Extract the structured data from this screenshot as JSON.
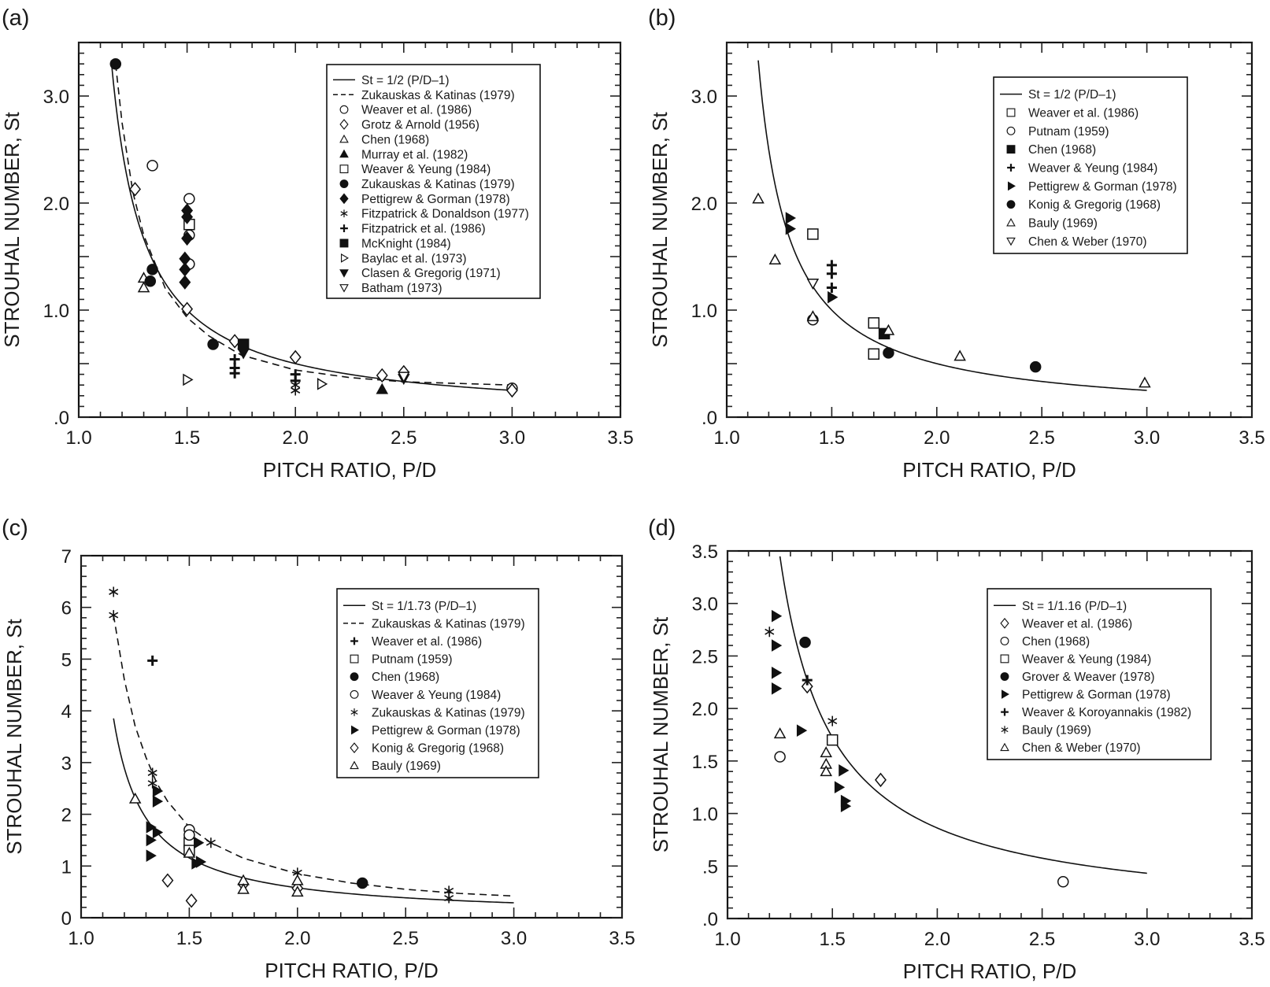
{
  "chart_data": [
    {
      "panel": "a",
      "panel_label": "(a)",
      "type": "scatter",
      "xlabel": "PITCH RATIO, P/D",
      "ylabel": "STROUHAL NUMBER, St",
      "xlim": [
        1.0,
        3.5
      ],
      "ylim": [
        0,
        3.5
      ],
      "xminor": 0.1,
      "xmajor": 0.5,
      "yminor": 0.1,
      "ymajor": 0.5,
      "xtick_values": [
        1.0,
        1.5,
        2.0,
        2.5,
        3.0,
        3.5
      ],
      "xtick_labels": [
        "1.0",
        "1.5",
        "2.0",
        "2.5",
        "3.0",
        "3.5"
      ],
      "ytick_values": [
        0,
        1,
        2,
        3
      ],
      "ytick_labels": [
        ".0",
        "1.0",
        "2.0",
        "3.0"
      ],
      "curves": [
        {
          "name": "St = 1/2 (P/D–1)",
          "style": "solid",
          "k": 2,
          "x_range": [
            1.15,
            3.0
          ]
        },
        {
          "name": "Zukauskas & Katinas (1979)",
          "style": "dashed",
          "points": [
            [
              1.17,
              3.3
            ],
            [
              1.2,
              2.75
            ],
            [
              1.25,
              2.1
            ],
            [
              1.3,
              1.7
            ],
            [
              1.4,
              1.2
            ],
            [
              1.5,
              0.93
            ],
            [
              1.6,
              0.76
            ],
            [
              1.75,
              0.58
            ],
            [
              2.0,
              0.44
            ],
            [
              2.25,
              0.37
            ],
            [
              2.5,
              0.33
            ],
            [
              3.0,
              0.3
            ]
          ]
        }
      ],
      "series": [
        {
          "name": "Weaver et al. (1986)",
          "marker": "circle-open",
          "points": [
            [
              1.34,
              2.35
            ],
            [
              1.51,
              2.04
            ],
            [
              1.51,
              1.7
            ],
            [
              1.51,
              1.43
            ],
            [
              3.0,
              0.27
            ]
          ]
        },
        {
          "name": "Grotz & Arnold (1956)",
          "marker": "diamond-open",
          "points": [
            [
              1.26,
              2.13
            ],
            [
              1.5,
              1.01
            ],
            [
              1.72,
              0.71
            ],
            [
              2.0,
              0.56
            ],
            [
              2.4,
              0.39
            ],
            [
              2.5,
              0.42
            ],
            [
              3.0,
              0.25
            ]
          ]
        },
        {
          "name": "Chen (1968)",
          "marker": "triangle-open",
          "points": [
            [
              1.3,
              1.3
            ],
            [
              1.3,
              1.21
            ]
          ]
        },
        {
          "name": "Murray et al. (1982)",
          "marker": "triangle-filled",
          "points": [
            [
              2.4,
              0.26
            ]
          ]
        },
        {
          "name": "Weaver & Yeung (1984)",
          "marker": "square-open",
          "points": [
            [
              1.51,
              1.8
            ]
          ]
        },
        {
          "name": "Zukauskas & Katinas (1979)",
          "marker": "circle-filled",
          "points": [
            [
              1.17,
              3.3
            ],
            [
              1.34,
              1.38
            ],
            [
              1.33,
              1.27
            ],
            [
              1.62,
              0.68
            ]
          ]
        },
        {
          "name": "Pettigrew & Gorman (1978)",
          "marker": "diamond-filled",
          "points": [
            [
              1.5,
              1.93
            ],
            [
              1.5,
              1.87
            ],
            [
              1.5,
              1.67
            ],
            [
              1.49,
              1.48
            ],
            [
              1.49,
              1.38
            ],
            [
              1.49,
              1.26
            ]
          ]
        },
        {
          "name": "Fitzpatrick & Donaldson (1977)",
          "marker": "asterisk",
          "points": [
            [
              2.0,
              0.3
            ],
            [
              2.0,
              0.25
            ]
          ]
        },
        {
          "name": "Fitzpatrick et al. (1986)",
          "marker": "plus",
          "points": [
            [
              1.72,
              0.54
            ],
            [
              1.72,
              0.46
            ],
            [
              1.72,
              0.41
            ],
            [
              2.0,
              0.4
            ],
            [
              2.0,
              0.34
            ]
          ]
        },
        {
          "name": "McKnight (1984)",
          "marker": "square-filled",
          "points": [
            [
              1.76,
              0.68
            ]
          ]
        },
        {
          "name": "Baylac et al. (1973)",
          "marker": "tri-right-open",
          "points": [
            [
              1.5,
              0.35
            ],
            [
              2.12,
              0.31
            ]
          ]
        },
        {
          "name": "Clasen & Gregorig (1971)",
          "marker": "tri-down-filled",
          "points": [
            [
              1.76,
              0.6
            ],
            [
              2.5,
              0.36
            ]
          ]
        },
        {
          "name": "Batham (1973)",
          "marker": "tri-down-open",
          "points": [
            [
              2.5,
              0.38
            ]
          ]
        }
      ]
    },
    {
      "panel": "b",
      "panel_label": "(b)",
      "type": "scatter",
      "xlabel": "PITCH RATIO, P/D",
      "ylabel": "STROUHAL NUMBER, St",
      "xlim": [
        1.0,
        3.5
      ],
      "ylim": [
        0,
        3.5
      ],
      "xminor": 0.1,
      "xmajor": 0.5,
      "yminor": 0.1,
      "ymajor": 0.5,
      "xtick_values": [
        1.0,
        1.5,
        2.0,
        2.5,
        3.0,
        3.5
      ],
      "xtick_labels": [
        "1.0",
        "1.5",
        "2.0",
        "2.5",
        "3.0",
        "3.5"
      ],
      "ytick_values": [
        0,
        1,
        2,
        3
      ],
      "ytick_labels": [
        ".0",
        "1.0",
        "2.0",
        "3.0"
      ],
      "curves": [
        {
          "name": "St = 1/2 (P/D–1)",
          "style": "solid",
          "k": 2,
          "x_range": [
            1.15,
            3.0
          ]
        }
      ],
      "series": [
        {
          "name": "Weaver et al. (1986)",
          "marker": "square-open",
          "points": [
            [
              1.41,
              1.71
            ],
            [
              1.7,
              0.88
            ],
            [
              1.7,
              0.59
            ]
          ]
        },
        {
          "name": "Putnam (1959)",
          "marker": "circle-open",
          "points": [
            [
              1.41,
              0.91
            ]
          ]
        },
        {
          "name": "Chen (1968)",
          "marker": "square-filled",
          "points": [
            [
              1.75,
              0.78
            ]
          ]
        },
        {
          "name": "Weaver & Yeung (1984)",
          "marker": "plus",
          "points": [
            [
              1.5,
              1.42
            ],
            [
              1.5,
              1.34
            ],
            [
              1.5,
              1.21
            ]
          ]
        },
        {
          "name": "Pettigrew & Gorman (1978)",
          "marker": "tri-right-filled",
          "points": [
            [
              1.3,
              1.86
            ],
            [
              1.3,
              1.76
            ],
            [
              1.5,
              1.12
            ]
          ]
        },
        {
          "name": "Konig & Gregorig (1968)",
          "marker": "circle-filled",
          "points": [
            [
              1.77,
              0.6
            ],
            [
              2.47,
              0.47
            ]
          ]
        },
        {
          "name": "Bauly (1969)",
          "marker": "triangle-open",
          "points": [
            [
              1.15,
              2.04
            ],
            [
              1.23,
              1.47
            ],
            [
              1.41,
              0.94
            ],
            [
              1.77,
              0.81
            ],
            [
              2.11,
              0.57
            ],
            [
              2.99,
              0.32
            ]
          ]
        },
        {
          "name": "Chen & Weber (1970)",
          "marker": "tri-down-open",
          "points": [
            [
              1.41,
              1.25
            ]
          ]
        }
      ]
    },
    {
      "panel": "c",
      "panel_label": "(c)",
      "type": "scatter",
      "xlabel": "PITCH RATIO, P/D",
      "ylabel": "STROUHAL NUMBER, St",
      "xlim": [
        1.0,
        3.5
      ],
      "ylim": [
        0,
        7
      ],
      "xminor": 0.1,
      "xmajor": 0.5,
      "yminor": 0.2,
      "ymajor": 1,
      "xtick_values": [
        1.0,
        1.5,
        2.0,
        2.5,
        3.0,
        3.5
      ],
      "xtick_labels": [
        "1.0",
        "1.5",
        "2.0",
        "2.5",
        "3.0",
        "3.5"
      ],
      "ytick_values": [
        0,
        1,
        2,
        3,
        4,
        5,
        6,
        7
      ],
      "ytick_labels": [
        "0",
        "1",
        "2",
        "3",
        "4",
        "5",
        "6",
        "7"
      ],
      "curves": [
        {
          "name": "St = 1/1.73 (P/D–1)",
          "style": "solid",
          "k": 1.73,
          "x_range": [
            1.15,
            3.0
          ]
        },
        {
          "name": "Zukauskas & Katinas (1979)",
          "style": "dashed",
          "points": [
            [
              1.15,
              5.85
            ],
            [
              1.2,
              4.6
            ],
            [
              1.25,
              3.7
            ],
            [
              1.3,
              3.1
            ],
            [
              1.35,
              2.6
            ],
            [
              1.4,
              2.25
            ],
            [
              1.5,
              1.75
            ],
            [
              1.6,
              1.45
            ],
            [
              1.75,
              1.15
            ],
            [
              2.0,
              0.85
            ],
            [
              2.25,
              0.67
            ],
            [
              2.5,
              0.55
            ],
            [
              2.75,
              0.47
            ],
            [
              3.0,
              0.42
            ]
          ]
        }
      ],
      "series": [
        {
          "name": "Weaver et al. (1986)",
          "marker": "plus",
          "points": [
            [
              1.33,
              4.97
            ]
          ]
        },
        {
          "name": "Putnam (1959)",
          "marker": "square-open",
          "points": [
            [
              1.5,
              1.45
            ],
            [
              1.5,
              1.3
            ]
          ]
        },
        {
          "name": "Chen (1968)",
          "marker": "circle-filled",
          "points": [
            [
              2.3,
              0.67
            ]
          ]
        },
        {
          "name": "Weaver & Yeung (1984)",
          "marker": "circle-open",
          "points": [
            [
              1.5,
              1.7
            ],
            [
              1.5,
              1.6
            ]
          ]
        },
        {
          "name": "Zukauskas & Katinas (1979)",
          "marker": "asterisk",
          "points": [
            [
              1.15,
              6.3
            ],
            [
              1.15,
              5.85
            ],
            [
              1.33,
              2.8
            ],
            [
              1.33,
              2.6
            ],
            [
              1.6,
              1.45
            ],
            [
              2.0,
              0.87
            ],
            [
              2.7,
              0.52
            ],
            [
              2.7,
              0.38
            ]
          ]
        },
        {
          "name": "Pettigrew & Gorman (1978)",
          "marker": "tri-right-filled",
          "points": [
            [
              1.35,
              2.45
            ],
            [
              1.35,
              2.25
            ],
            [
              1.32,
              1.75
            ],
            [
              1.35,
              1.65
            ],
            [
              1.32,
              1.5
            ],
            [
              1.32,
              1.2
            ],
            [
              1.54,
              1.45
            ],
            [
              1.53,
              1.05
            ],
            [
              1.55,
              1.08
            ]
          ]
        },
        {
          "name": "Konig & Gregorig (1968)",
          "marker": "diamond-open",
          "points": [
            [
              1.4,
              0.72
            ],
            [
              1.51,
              0.33
            ],
            [
              1.75,
              0.65
            ],
            [
              2.0,
              0.57
            ]
          ]
        },
        {
          "name": "Bauly (1969)",
          "marker": "triangle-open",
          "points": [
            [
              1.25,
              2.3
            ],
            [
              1.5,
              1.25
            ],
            [
              1.75,
              0.72
            ],
            [
              1.75,
              0.55
            ],
            [
              2.0,
              0.72
            ],
            [
              2.0,
              0.5
            ]
          ]
        }
      ]
    },
    {
      "panel": "d",
      "panel_label": "(d)",
      "type": "scatter",
      "xlabel": "PITCH RATIO, P/D",
      "ylabel": "STROUHAL NUMBER, St",
      "xlim": [
        1.0,
        3.5
      ],
      "ylim": [
        0,
        3.5
      ],
      "xminor": 0.1,
      "xmajor": 0.5,
      "yminor": 0.1,
      "ymajor": 0.5,
      "xtick_values": [
        1.0,
        1.5,
        2.0,
        2.5,
        3.0,
        3.5
      ],
      "xtick_labels": [
        "1.0",
        "1.5",
        "2.0",
        "2.5",
        "3.0",
        "3.5"
      ],
      "ytick_values": [
        0,
        0.5,
        1,
        1.5,
        2,
        2.5,
        3,
        3.5
      ],
      "ytick_labels": [
        ".0",
        ".5",
        "1.0",
        "1.5",
        "2.0",
        "2.5",
        "3.0",
        "3.5"
      ],
      "curves": [
        {
          "name": "St = 1/1.16 (P/D–1)",
          "style": "solid",
          "k": 1.16,
          "x_range": [
            1.24,
            3.0
          ]
        }
      ],
      "series": [
        {
          "name": "Weaver et al. (1986)",
          "marker": "diamond-open",
          "points": [
            [
              1.38,
              2.21
            ],
            [
              1.73,
              1.32
            ]
          ]
        },
        {
          "name": "Chen (1968)",
          "marker": "circle-open",
          "points": [
            [
              1.25,
              1.54
            ],
            [
              2.6,
              0.35
            ]
          ]
        },
        {
          "name": "Weaver & Yeung (1984)",
          "marker": "square-open",
          "points": [
            [
              1.5,
              1.7
            ]
          ]
        },
        {
          "name": "Grover & Weaver (1978)",
          "marker": "circle-filled",
          "points": [
            [
              1.37,
              2.63
            ]
          ]
        },
        {
          "name": "Pettigrew & Gorman (1978)",
          "marker": "tri-right-filled",
          "points": [
            [
              1.23,
              2.88
            ],
            [
              1.23,
              2.6
            ],
            [
              1.23,
              2.34
            ],
            [
              1.23,
              2.19
            ],
            [
              1.35,
              1.79
            ],
            [
              1.55,
              1.41
            ],
            [
              1.53,
              1.25
            ],
            [
              1.56,
              1.12
            ],
            [
              1.56,
              1.07
            ]
          ]
        },
        {
          "name": "Weaver & Koroyannakis (1982)",
          "marker": "plus",
          "points": [
            [
              1.38,
              2.27
            ]
          ]
        },
        {
          "name": "Bauly (1969)",
          "marker": "asterisk",
          "points": [
            [
              1.2,
              2.73
            ],
            [
              1.5,
              1.88
            ]
          ]
        },
        {
          "name": "Chen & Weber (1970)",
          "marker": "triangle-open",
          "points": [
            [
              1.25,
              1.76
            ],
            [
              1.47,
              1.58
            ],
            [
              1.47,
              1.47
            ],
            [
              1.47,
              1.4
            ]
          ]
        }
      ]
    }
  ]
}
